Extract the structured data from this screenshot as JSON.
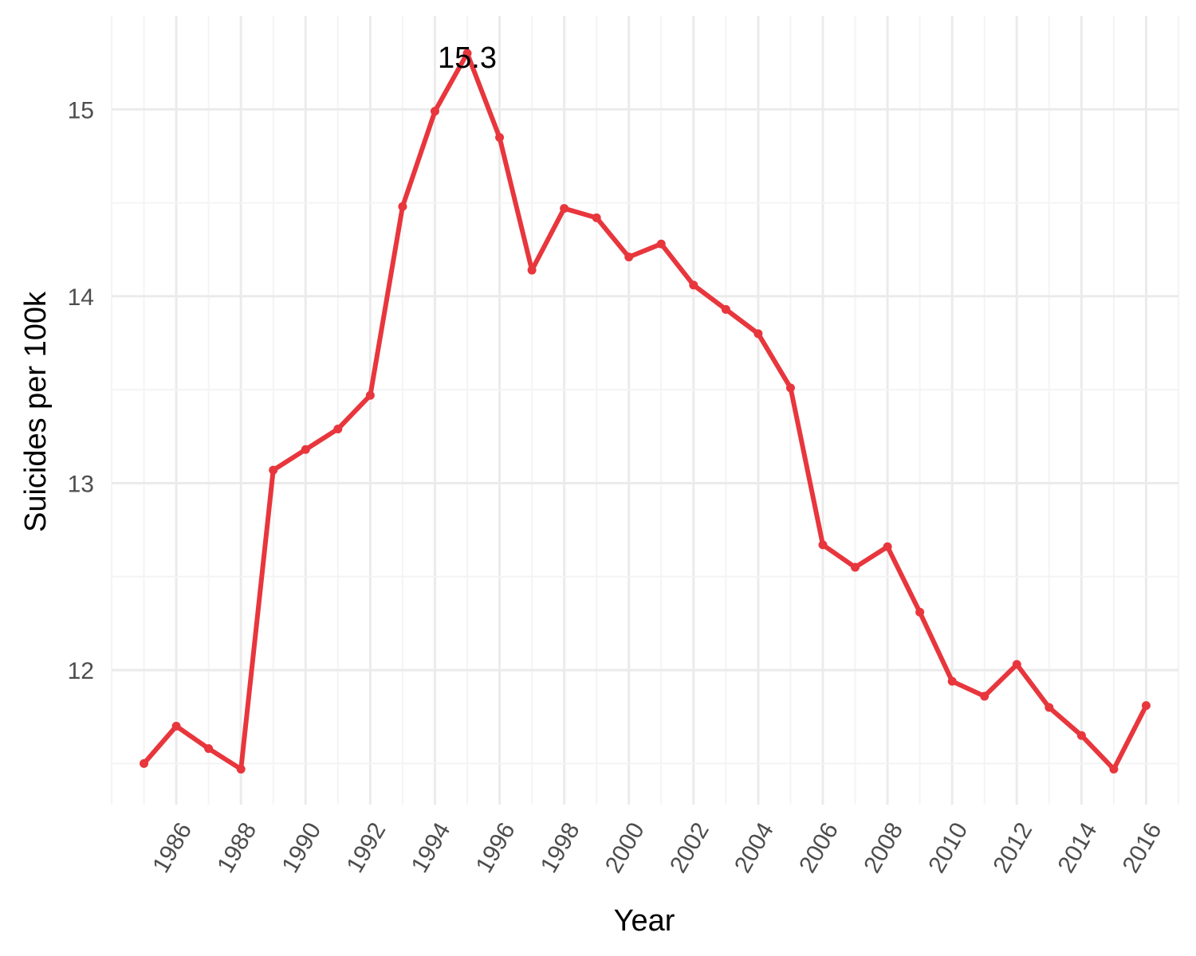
{
  "chart_data": {
    "type": "line",
    "title": "",
    "xlabel": "Year",
    "ylabel": "Suicides per 100k",
    "x": [
      1985,
      1986,
      1987,
      1988,
      1989,
      1990,
      1991,
      1992,
      1993,
      1994,
      1995,
      1996,
      1997,
      1998,
      1999,
      2000,
      2001,
      2002,
      2003,
      2004,
      2005,
      2006,
      2007,
      2008,
      2009,
      2010,
      2011,
      2012,
      2013,
      2014,
      2015,
      2016
    ],
    "series": [
      {
        "values": [
          11.5,
          11.7,
          11.58,
          11.47,
          13.07,
          13.18,
          13.29,
          13.47,
          14.48,
          14.99,
          15.3,
          14.85,
          14.14,
          14.47,
          14.42,
          14.21,
          14.28,
          14.06,
          13.93,
          13.8,
          13.51,
          12.67,
          12.55,
          12.66,
          12.31,
          11.94,
          11.86,
          12.03,
          11.8,
          11.65,
          11.47,
          11.81
        ],
        "color": "#e8363d"
      }
    ],
    "xticks": [
      "1986",
      "1988",
      "1990",
      "1992",
      "1994",
      "1996",
      "1998",
      "2000",
      "2002",
      "2004",
      "2006",
      "2008",
      "2010",
      "2012",
      "2014",
      "2016"
    ],
    "yticks": [
      "12",
      "13",
      "14",
      "15"
    ],
    "xlim": [
      1984,
      2017
    ],
    "ylim": [
      11.28,
      15.5
    ],
    "grid": true,
    "legend": "none",
    "annotations": [
      {
        "x": 1995,
        "y": 15.3,
        "text": "15.3"
      }
    ]
  }
}
